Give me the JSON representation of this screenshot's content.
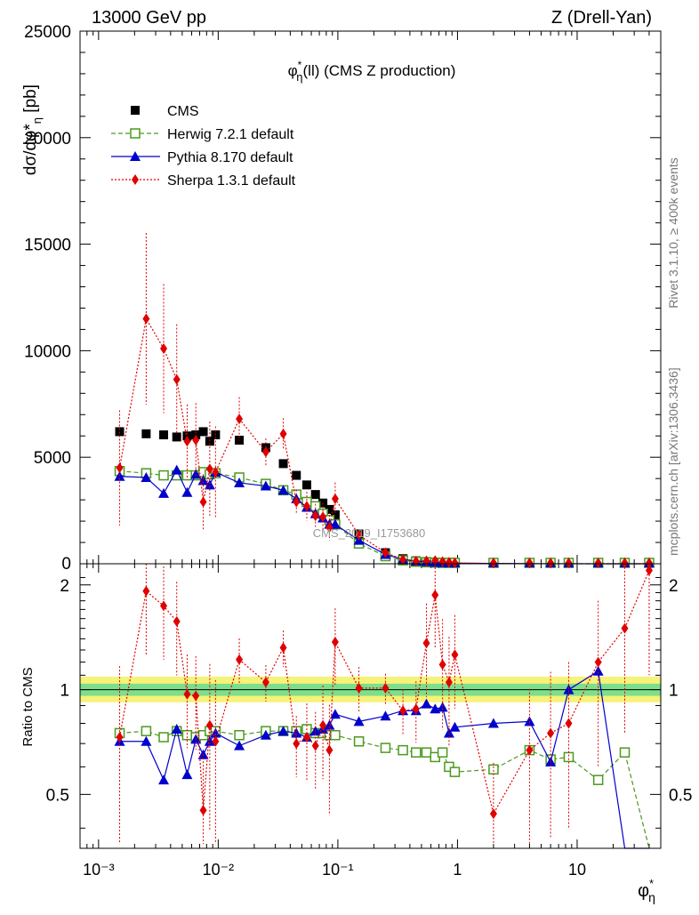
{
  "header": {
    "left": "13000 GeV pp",
    "right": "Z (Drell-Yan)"
  },
  "side_text": {
    "rivet": "Rivet 3.1.10, ≥ 400k events",
    "mcplots": "mcplots.cern.ch [arXiv:1306.3436]"
  },
  "chart_data": {
    "type": "scatter",
    "title": "φ*η(ll) (CMS Z production)",
    "watermark": "CMS_2019_I1753680",
    "xscale": "log",
    "xlim": [
      0.0007,
      50
    ],
    "x_tick_labels": [
      "10⁻³",
      "10⁻²",
      "10⁻¹",
      "1",
      "10"
    ],
    "xlabel": "φ*η",
    "legend_position": "top-left",
    "upper": {
      "ylabel": "dσ/dφ*η [pb]",
      "ylim": [
        0,
        25000
      ],
      "y_ticks": [
        5000,
        10000,
        15000,
        20000,
        25000
      ],
      "y_tick_labels": [
        "5000",
        "10000",
        "15000",
        "20000",
        "25000"
      ]
    },
    "ratio": {
      "ylabel": "Ratio to CMS",
      "ylim": [
        0.35,
        2.3
      ],
      "y_ticks": [
        0.5,
        1,
        2
      ],
      "y_tick_labels": [
        "0.5",
        "1",
        "2"
      ],
      "band_colors": [
        "#f6f27a",
        "#7dde8b"
      ]
    },
    "x": [
      0.0015,
      0.0025,
      0.0035,
      0.0045,
      0.0055,
      0.0065,
      0.0075,
      0.0085,
      0.0095,
      0.015,
      0.025,
      0.035,
      0.045,
      0.055,
      0.065,
      0.075,
      0.085,
      0.095,
      0.15,
      0.25,
      0.35,
      0.45,
      0.55,
      0.65,
      0.75,
      0.85,
      0.95,
      2,
      4,
      6,
      8.5,
      15,
      25,
      40
    ],
    "series": [
      {
        "name": "CMS",
        "color": "#000000",
        "marker": "square",
        "values": [
          6200,
          6100,
          6050,
          5950,
          6000,
          6050,
          6200,
          5750,
          6050,
          5800,
          5450,
          4700,
          4150,
          3700,
          3250,
          2850,
          2550,
          2300,
          1400,
          520,
          240,
          140,
          105,
          80,
          60,
          45,
          35,
          18,
          6,
          4,
          2.5,
          1.2,
          0.7,
          0.3
        ]
      },
      {
        "name": "Herwig 7.2.1 default",
        "color": "#4a9a1e",
        "marker": "open-square",
        "line": "dashed",
        "values": [
          4350,
          4250,
          4150,
          4150,
          4150,
          4150,
          4300,
          4200,
          4250,
          4050,
          3750,
          3450,
          3250,
          2900,
          2700,
          2350,
          2050,
          1850,
          950,
          355,
          160,
          93,
          68,
          51,
          40,
          29,
          21,
          10.5,
          4,
          2.5,
          1.5,
          0.65,
          0.45,
          0.1
        ],
        "ratio": [
          0.75,
          0.76,
          0.73,
          0.76,
          0.74,
          0.73,
          0.74,
          0.76,
          0.76,
          0.74,
          0.76,
          0.76,
          0.76,
          0.77,
          0.75,
          0.75,
          0.74,
          0.74,
          0.71,
          0.68,
          0.67,
          0.66,
          0.66,
          0.64,
          0.66,
          0.6,
          0.58,
          0.59,
          0.67,
          0.63,
          0.64,
          0.55,
          0.66,
          0.3
        ]
      },
      {
        "name": "Pythia 8.170 default",
        "color": "#0000cc",
        "marker": "triangle",
        "line": "solid",
        "values": [
          4100,
          4050,
          3300,
          4400,
          3350,
          4200,
          3900,
          3700,
          4300,
          3800,
          3650,
          3450,
          3050,
          2650,
          2350,
          2150,
          1850,
          1850,
          1100,
          440,
          208,
          120,
          95,
          70,
          53,
          34,
          27,
          14.5,
          4.8,
          2.6,
          2.5,
          1.4,
          0.2,
          0.05
        ],
        "ratio": [
          0.71,
          0.71,
          0.55,
          0.77,
          0.57,
          0.72,
          0.65,
          0.71,
          0.75,
          0.69,
          0.74,
          0.76,
          0.75,
          0.73,
          0.76,
          0.77,
          0.79,
          0.85,
          0.81,
          0.84,
          0.87,
          0.87,
          0.91,
          0.88,
          0.89,
          0.75,
          0.78,
          0.8,
          0.81,
          0.62,
          1.0,
          1.13,
          0.3,
          0.3
        ]
      },
      {
        "name": "Sherpa 1.3.1 default",
        "color": "#e00000",
        "marker": "diamond",
        "line": "dotted",
        "values": [
          4500,
          11500,
          10100,
          8650,
          5750,
          5800,
          2900,
          4450,
          4300,
          6800,
          5250,
          6100,
          2900,
          2700,
          2250,
          2200,
          1700,
          3050,
          1350,
          520,
          205,
          125,
          140,
          150,
          105,
          75,
          45,
          8,
          4,
          3,
          2,
          1.5,
          1,
          0.5
        ],
        "ratio": [
          0.73,
          1.92,
          1.74,
          1.57,
          0.97,
          0.96,
          0.45,
          0.79,
          0.71,
          1.22,
          1.05,
          1.32,
          0.7,
          0.73,
          0.69,
          0.79,
          0.67,
          1.37,
          1.01,
          1.01,
          0.87,
          0.88,
          1.36,
          1.87,
          1.18,
          1.05,
          1.26,
          0.44,
          0.67,
          0.75,
          0.8,
          1.2,
          1.5,
          2.2
        ],
        "rel_err": [
          0.6,
          0.35,
          0.3,
          0.3,
          0.3,
          0.3,
          0.45,
          0.5,
          0.5,
          0.15,
          0.12,
          0.12,
          0.2,
          0.25,
          0.25,
          0.3,
          0.35,
          0.25,
          0.15,
          0.1,
          0.15,
          0.2,
          0.3,
          0.3,
          0.35,
          0.35,
          0.3,
          0.4,
          0.5,
          0.5,
          0.5,
          0.5,
          0.5,
          0.5
        ]
      }
    ]
  }
}
